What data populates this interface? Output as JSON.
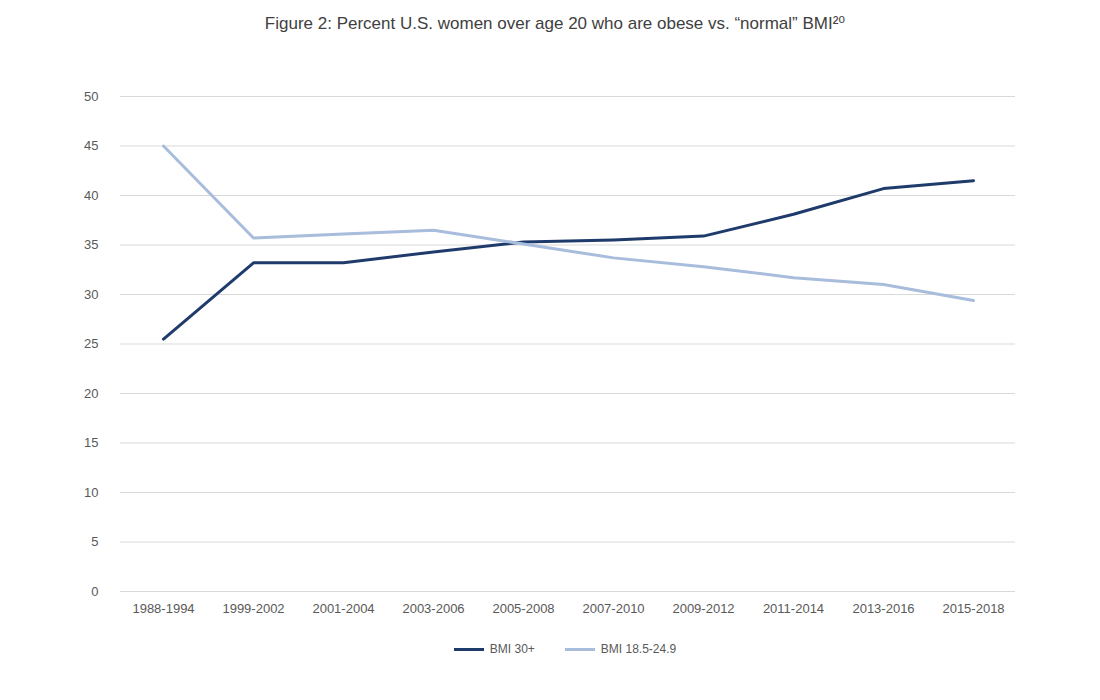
{
  "chart_data": {
    "type": "line",
    "title": "Figure 2: Percent U.S. women over age 20 who are obese vs. “normal” BMI²⁰",
    "categories": [
      "1988-1994",
      "1999-2002",
      "2001-2004",
      "2003-2006",
      "2005-2008",
      "2007-2010",
      "2009-2012",
      "2011-2014",
      "2013-2016",
      "2015-2018"
    ],
    "series": [
      {
        "name": "BMI 30+",
        "color": "#1f3b6b",
        "values": [
          25.5,
          33.2,
          33.2,
          34.3,
          35.3,
          35.5,
          35.9,
          38.1,
          40.7,
          41.5
        ]
      },
      {
        "name": "BMI 18.5-24.9",
        "color": "#a8bcdc",
        "values": [
          45.0,
          35.7,
          36.1,
          36.5,
          35.1,
          33.7,
          32.8,
          31.7,
          31.0,
          29.4
        ]
      }
    ],
    "ylim": [
      0,
      50
    ],
    "yticks": [
      0,
      5,
      10,
      15,
      20,
      25,
      30,
      35,
      40,
      45,
      50
    ],
    "grid": true,
    "legend": "bottom"
  }
}
